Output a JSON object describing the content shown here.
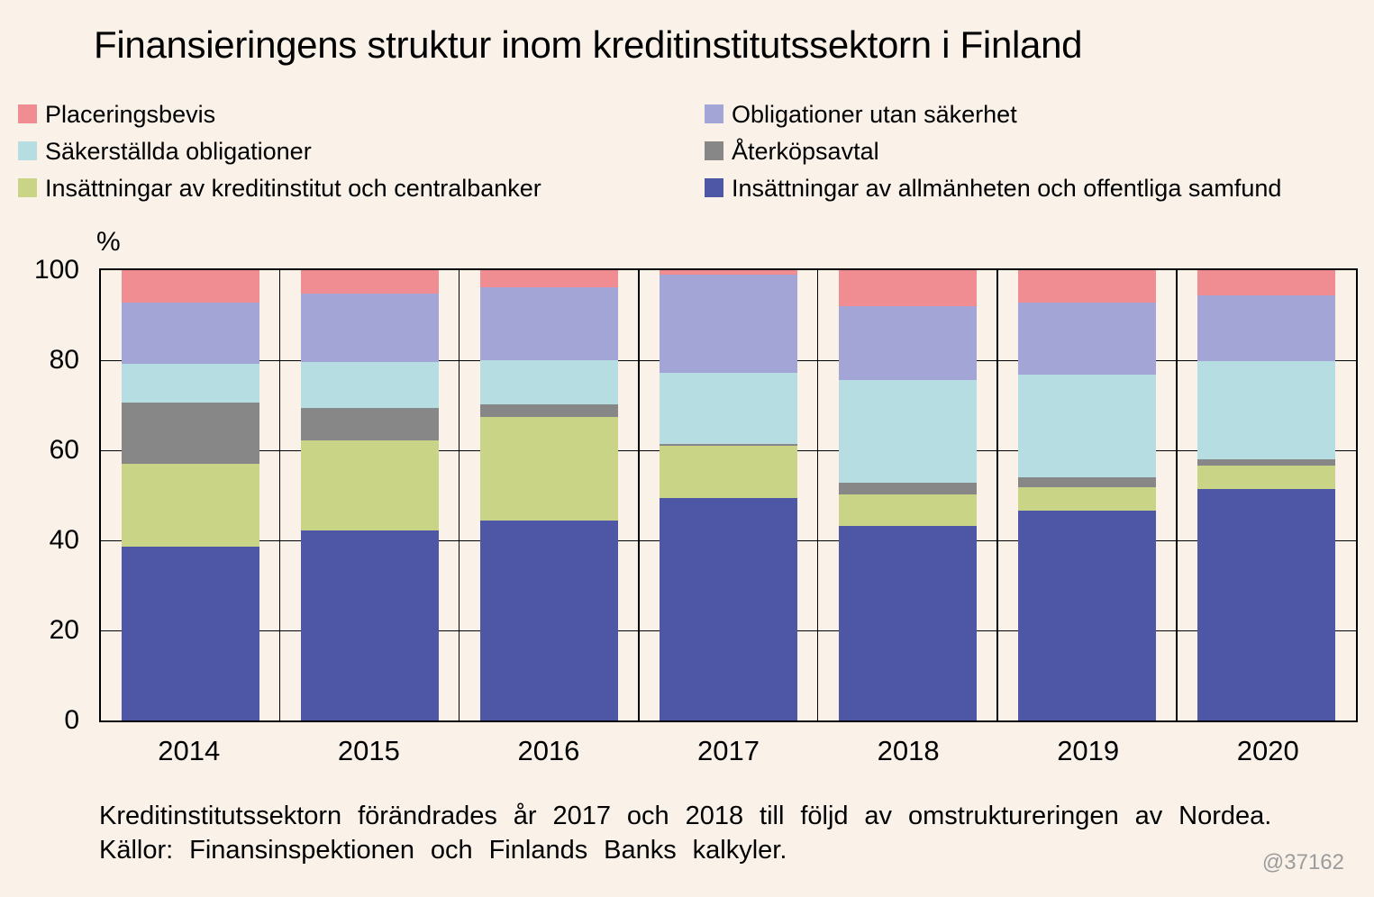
{
  "title": "Finansieringens struktur inom kreditinstitutssektorn i Finland",
  "y_axis": {
    "unit_label": "%",
    "ticks": [
      {
        "label": "100",
        "value": 100
      },
      {
        "label": "80",
        "value": 80
      },
      {
        "label": "60",
        "value": 60
      },
      {
        "label": "40",
        "value": 40
      },
      {
        "label": "20",
        "value": 20
      },
      {
        "label": "0",
        "value": 0
      }
    ]
  },
  "legend": [
    {
      "label": "Placeringsbevis",
      "color": "#f08d93"
    },
    {
      "label": "Obligationer utan säkerhet",
      "color": "#a2a5d5"
    },
    {
      "label": "Säkerställda obligationer",
      "color": "#b6dde1"
    },
    {
      "label": "Återköpsavtal",
      "color": "#878787"
    },
    {
      "label": "Insättningar av kreditinstitut och centralbanker",
      "color": "#c9d486"
    },
    {
      "label": "Insättningar av allmänheten och offentliga samfund",
      "color": "#4e57a5"
    }
  ],
  "chart_data": {
    "type": "bar",
    "stacked": true,
    "unit": "%",
    "ylim": [
      0,
      100
    ],
    "gridlines": [
      20,
      40,
      60,
      80
    ],
    "grid": "on",
    "legend_position": "top",
    "background": "#faf2e9",
    "categories": [
      "2014",
      "2015",
      "2016",
      "2017",
      "2018",
      "2019",
      "2020"
    ],
    "series": [
      {
        "name": "Insättningar av allmänheten och offentliga samfund",
        "color": "#4e57a5",
        "values": [
          38.6,
          42.3,
          44.5,
          49.5,
          43.3,
          46.6,
          51.4
        ]
      },
      {
        "name": "Insättningar av kreditinstitut och centralbanker",
        "color": "#c9d486",
        "values": [
          18.5,
          19.9,
          22.9,
          11.5,
          7.0,
          5.2,
          5.3
        ]
      },
      {
        "name": "Återköpsavtal",
        "color": "#878787",
        "values": [
          13.6,
          7.3,
          2.9,
          0.4,
          2.6,
          2.3,
          1.3
        ]
      },
      {
        "name": "Säkerställda obligationer",
        "color": "#b6dde1",
        "values": [
          8.5,
          10.2,
          9.8,
          15.8,
          22.7,
          22.8,
          21.8
        ]
      },
      {
        "name": "Obligationer utan säkerhet",
        "color": "#a2a5d5",
        "values": [
          13.6,
          15.1,
          16.2,
          21.8,
          16.4,
          15.9,
          14.7
        ]
      },
      {
        "name": "Placeringsbevis",
        "color": "#f08d93",
        "values": [
          7.2,
          5.2,
          3.7,
          1.0,
          8.0,
          7.2,
          5.5
        ]
      }
    ]
  },
  "footer": {
    "line1": "Kreditinstitutssektorn förändrades år 2017 och 2018 till följd av omstruktureringen av Nordea.",
    "line2": "Källor: Finansinspektionen och Finlands Banks kalkyler.",
    "watermark": "@37162"
  },
  "colors": {
    "background": "#faf2e9",
    "axis": "#000000",
    "text": "#000000",
    "watermark": "#9c9c9c"
  }
}
